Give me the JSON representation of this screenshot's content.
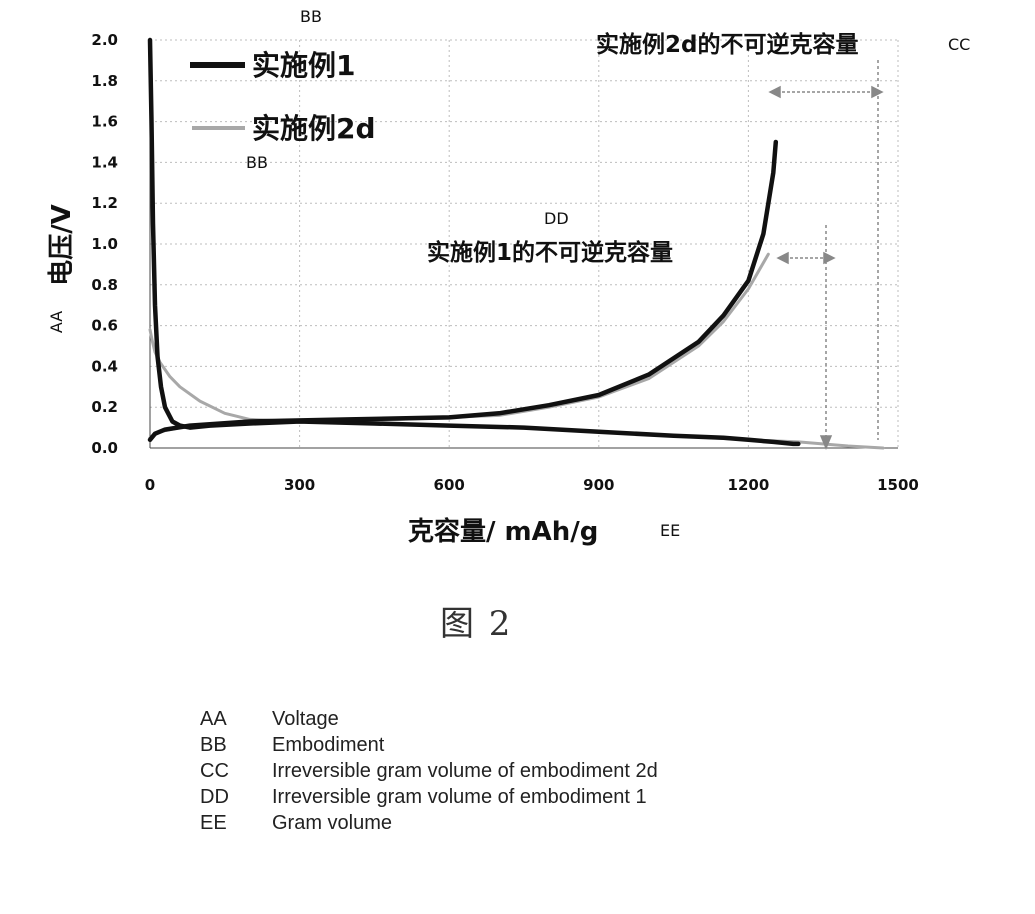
{
  "chart_data": {
    "type": "line",
    "xlabel": "克容量/ mAh/g",
    "xlabel_code": "EE",
    "ylabel": "电压/V",
    "ylabel_code": "AA",
    "xlim": [
      0,
      1500
    ],
    "ylim": [
      0,
      2.0
    ],
    "x_ticks": [
      "0",
      "300",
      "600",
      "900",
      "1200",
      "1500"
    ],
    "y_ticks": [
      "0.0",
      "0.2",
      "0.4",
      "0.6",
      "0.8",
      "1.0",
      "1.2",
      "1.4",
      "1.6",
      "1.8",
      "2.0"
    ],
    "grid": true,
    "legend_position": "top-left",
    "series": [
      {
        "name": "实施例1",
        "color": "#111111",
        "discharge": {
          "x": [
            0,
            3,
            6,
            10,
            15,
            22,
            30,
            45,
            60,
            80,
            120,
            200,
            300,
            450,
            600,
            750,
            900,
            1050,
            1150,
            1200,
            1250,
            1290,
            1300
          ],
          "y": [
            2.0,
            1.6,
            1.1,
            0.7,
            0.45,
            0.3,
            0.2,
            0.13,
            0.11,
            0.1,
            0.11,
            0.12,
            0.13,
            0.12,
            0.11,
            0.1,
            0.08,
            0.06,
            0.05,
            0.04,
            0.03,
            0.02,
            0.02
          ]
        },
        "charge": {
          "x": [
            0,
            10,
            30,
            80,
            200,
            400,
            600,
            700,
            800,
            900,
            1000,
            1100,
            1150,
            1200,
            1230,
            1250,
            1255
          ],
          "y": [
            0.04,
            0.07,
            0.09,
            0.11,
            0.13,
            0.14,
            0.15,
            0.17,
            0.21,
            0.26,
            0.36,
            0.52,
            0.65,
            0.82,
            1.05,
            1.35,
            1.5
          ]
        }
      },
      {
        "name": "实施例2d",
        "color": "#a8a8a8",
        "discharge": {
          "x": [
            0,
            5,
            10,
            20,
            40,
            60,
            100,
            150,
            200,
            300,
            450,
            600,
            750,
            900,
            1050,
            1200,
            1300,
            1400,
            1470
          ],
          "y": [
            0.58,
            0.52,
            0.47,
            0.42,
            0.35,
            0.3,
            0.23,
            0.17,
            0.14,
            0.13,
            0.12,
            0.11,
            0.1,
            0.08,
            0.06,
            0.04,
            0.03,
            0.01,
            0.0
          ]
        },
        "charge": {
          "x": [
            0,
            20,
            60,
            150,
            300,
            500,
            700,
            800,
            900,
            1000,
            1100,
            1150,
            1200,
            1240
          ],
          "y": [
            0.05,
            0.08,
            0.1,
            0.12,
            0.13,
            0.14,
            0.16,
            0.2,
            0.25,
            0.34,
            0.5,
            0.62,
            0.78,
            0.95
          ]
        }
      }
    ],
    "annotations": [
      {
        "text": "实施例2d的不可逆克容量",
        "code": "CC"
      },
      {
        "text": "实施例1的不可逆克容量",
        "code": "DD"
      }
    ],
    "legend_codes": [
      "BB",
      "BB"
    ]
  },
  "caption": "图 2",
  "glossary": [
    {
      "code": "AA",
      "text": "Voltage"
    },
    {
      "code": "BB",
      "text": "Embodiment"
    },
    {
      "code": "CC",
      "text": "Irreversible gram volume of embodiment 2d"
    },
    {
      "code": "DD",
      "text": "Irreversible gram volume of embodiment 1"
    },
    {
      "code": "EE",
      "text": "Gram volume"
    }
  ]
}
